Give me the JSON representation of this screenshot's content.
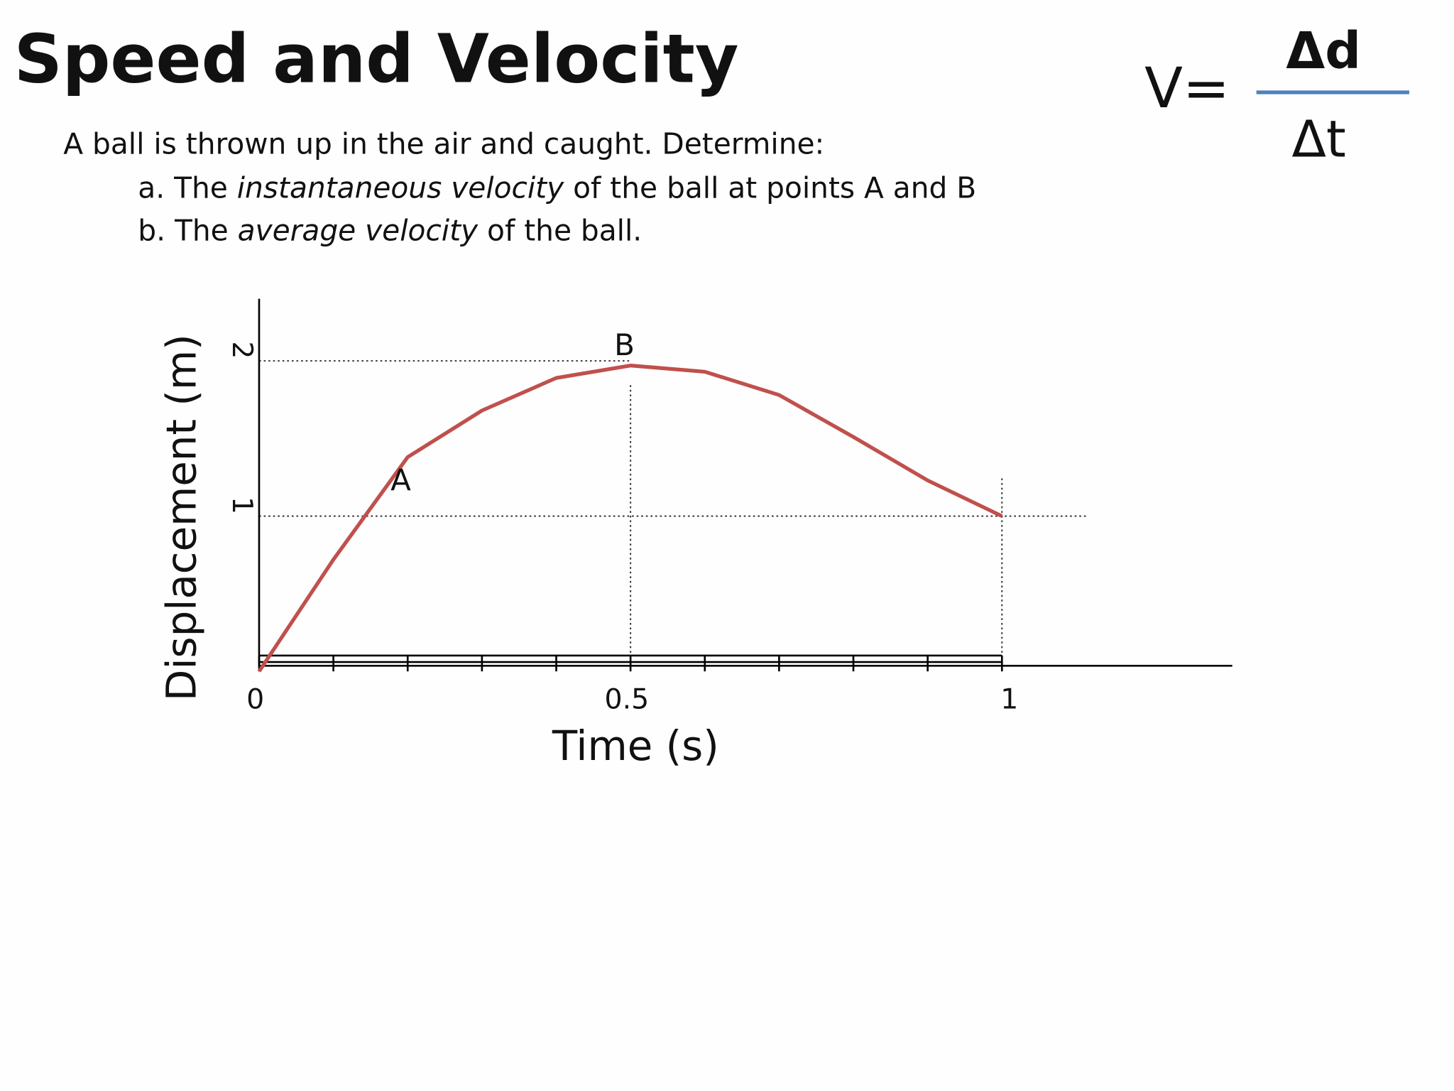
{
  "header": {
    "title": "Speed and Velocity"
  },
  "formula": {
    "lhs": "V=",
    "numerator": "Δd",
    "denominator": "Δt"
  },
  "question": {
    "intro": "A ball is thrown up in the air and caught. Determine:",
    "a": [
      "a. The ",
      "instantaneous velocity",
      " of the ball at points A and B"
    ],
    "b": [
      "b. The ",
      "average velocity",
      " of the ball."
    ]
  },
  "chart_data": {
    "type": "line",
    "x_label": "Time (s)",
    "y_label": "Displacement (m)",
    "x": [
      0,
      0.1,
      0.2,
      0.3,
      0.4,
      0.5,
      0.6,
      0.7,
      0.8,
      0.9,
      1
    ],
    "values": [
      0,
      0.72,
      1.38,
      1.68,
      1.89,
      1.97,
      1.93,
      1.78,
      1.51,
      1.23,
      1
    ],
    "color": "#c0504d",
    "xlim": [
      0,
      1.31
    ],
    "ylim": [
      0,
      2.4
    ],
    "xticks": [
      0,
      0.5,
      1
    ],
    "yticks": [
      1,
      2
    ],
    "grid": true,
    "annotations": [
      "A",
      "B"
    ]
  }
}
